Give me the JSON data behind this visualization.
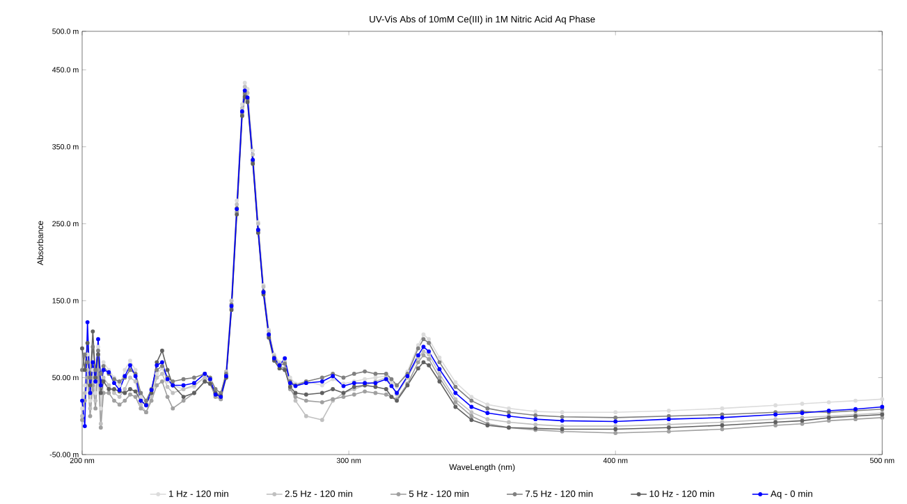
{
  "chart_data": {
    "type": "line",
    "title": "UV-Vis Abs of 10mM Ce(III) in 1M Nitric Acid Aq Phase",
    "xlabel": "WaveLength (nm)",
    "ylabel": "Absorbance",
    "x": [
      200,
      201,
      202,
      203,
      204,
      205,
      206,
      207,
      208,
      210,
      212,
      214,
      216,
      218,
      220,
      222,
      224,
      226,
      228,
      230,
      232,
      234,
      238,
      242,
      246,
      248,
      250,
      252,
      254,
      256,
      258,
      260,
      261,
      262,
      264,
      266,
      268,
      270,
      272,
      274,
      276,
      278,
      280,
      284,
      290,
      294,
      298,
      302,
      306,
      310,
      314,
      316,
      318,
      322,
      326,
      328,
      330,
      334,
      340,
      346,
      352,
      360,
      370,
      380,
      400,
      420,
      440,
      460,
      470,
      480,
      490,
      500
    ],
    "series": [
      {
        "name": "1 Hz - 120 min",
        "color": "#dcdcdc",
        "values": [
          10,
          40,
          80,
          20,
          60,
          30,
          90,
          10,
          70,
          60,
          50,
          40,
          60,
          72,
          60,
          25,
          18,
          30,
          55,
          62,
          45,
          40,
          35,
          38,
          52,
          45,
          25,
          22,
          55,
          150,
          280,
          405,
          433,
          425,
          345,
          252,
          170,
          112,
          80,
          70,
          72,
          50,
          42,
          45,
          40,
          48,
          42,
          45,
          48,
          50,
          52,
          45,
          38,
          58,
          92,
          106,
          100,
          76,
          44,
          25,
          15,
          10,
          6,
          5,
          5,
          7,
          10,
          14,
          16,
          18,
          20,
          22
        ]
      },
      {
        "name": "2.5 Hz - 120 min",
        "color": "#c0c0c0",
        "values": [
          0,
          30,
          60,
          10,
          50,
          20,
          80,
          -10,
          50,
          40,
          30,
          25,
          35,
          50,
          45,
          15,
          5,
          25,
          50,
          55,
          38,
          30,
          35,
          40,
          50,
          45,
          30,
          28,
          58,
          150,
          275,
          400,
          428,
          420,
          340,
          250,
          168,
          110,
          78,
          68,
          70,
          40,
          20,
          0,
          -5,
          20,
          30,
          35,
          40,
          45,
          50,
          40,
          28,
          50,
          76,
          84,
          80,
          55,
          22,
          5,
          -4,
          -8,
          -11,
          -13,
          -13,
          -11,
          -8,
          -4,
          -2,
          0,
          2,
          4
        ]
      },
      {
        "name": "5 Hz - 120 min",
        "color": "#a0a0a0",
        "values": [
          -5,
          20,
          50,
          0,
          40,
          10,
          60,
          -15,
          30,
          30,
          20,
          15,
          20,
          28,
          25,
          10,
          5,
          20,
          40,
          45,
          25,
          10,
          20,
          30,
          45,
          42,
          25,
          22,
          50,
          140,
          265,
          392,
          418,
          410,
          330,
          240,
          160,
          104,
          74,
          65,
          62,
          35,
          25,
          20,
          18,
          22,
          25,
          28,
          32,
          30,
          28,
          25,
          22,
          42,
          70,
          79,
          74,
          50,
          18,
          0,
          -10,
          -15,
          -18,
          -20,
          -22,
          -20,
          -17,
          -12,
          -10,
          -6,
          -4,
          -2
        ]
      },
      {
        "name": "7.5 Hz - 120 min",
        "color": "#808080",
        "values": [
          60,
          80,
          70,
          50,
          90,
          60,
          85,
          55,
          65,
          55,
          48,
          45,
          50,
          60,
          55,
          30,
          20,
          35,
          60,
          65,
          50,
          45,
          48,
          50,
          55,
          50,
          35,
          30,
          55,
          145,
          270,
          395,
          420,
          412,
          332,
          242,
          162,
          106,
          76,
          66,
          68,
          45,
          40,
          45,
          50,
          55,
          50,
          55,
          58,
          55,
          55,
          48,
          40,
          55,
          88,
          100,
          95,
          70,
          38,
          20,
          10,
          5,
          1,
          -1,
          -2,
          0,
          2,
          5,
          6,
          5,
          7,
          9
        ]
      },
      {
        "name": "10 Hz - 120 min",
        "color": "#606060",
        "values": [
          88,
          60,
          95,
          40,
          110,
          50,
          80,
          30,
          45,
          35,
          35,
          32,
          30,
          35,
          32,
          20,
          15,
          30,
          70,
          85,
          60,
          40,
          25,
          30,
          45,
          42,
          30,
          26,
          50,
          138,
          262,
          390,
          415,
          408,
          328,
          238,
          158,
          102,
          72,
          62,
          60,
          38,
          30,
          28,
          30,
          35,
          30,
          38,
          40,
          38,
          35,
          25,
          20,
          40,
          62,
          70,
          66,
          45,
          12,
          -5,
          -12,
          -15,
          -16,
          -17,
          -17,
          -15,
          -12,
          -8,
          -6,
          -2,
          0,
          2
        ]
      },
      {
        "name": "Aq - 0 min",
        "color": "#0000ff",
        "values": [
          20,
          -13,
          122,
          30,
          70,
          45,
          100,
          40,
          60,
          57,
          43,
          34,
          52,
          66,
          52,
          20,
          14,
          34,
          66,
          70,
          48,
          40,
          40,
          43,
          55,
          48,
          28,
          25,
          52,
          143,
          269,
          396,
          423,
          414,
          333,
          242,
          161,
          106,
          75,
          66,
          75,
          43,
          39,
          43,
          45,
          52,
          39,
          43,
          43,
          43,
          48,
          39,
          30,
          52,
          79,
          90,
          84,
          61,
          30,
          12,
          4,
          0,
          -4,
          -6,
          -7,
          -4,
          -2,
          2,
          4,
          7,
          9,
          12
        ]
      }
    ],
    "xlim": [
      200,
      500
    ],
    "ylim": [
      -50,
      500
    ],
    "xticks": [
      {
        "value": 200,
        "label": "200 nm"
      },
      {
        "value": 300,
        "label": "300 nm"
      },
      {
        "value": 400,
        "label": "400 nm"
      },
      {
        "value": 500,
        "label": "500 nm"
      }
    ],
    "yticks": [
      {
        "value": -50,
        "label": "-50.00 m"
      },
      {
        "value": 50,
        "label": "50.00 m"
      },
      {
        "value": 150,
        "label": "150.0 m"
      },
      {
        "value": 250,
        "label": "250.0 m"
      },
      {
        "value": 350,
        "label": "350.0 m"
      },
      {
        "value": 450,
        "label": "450.0 m"
      },
      {
        "value": 500,
        "label": "500.0 m"
      }
    ],
    "legend": "bottom",
    "marker": "circle",
    "line_style": "solid"
  }
}
